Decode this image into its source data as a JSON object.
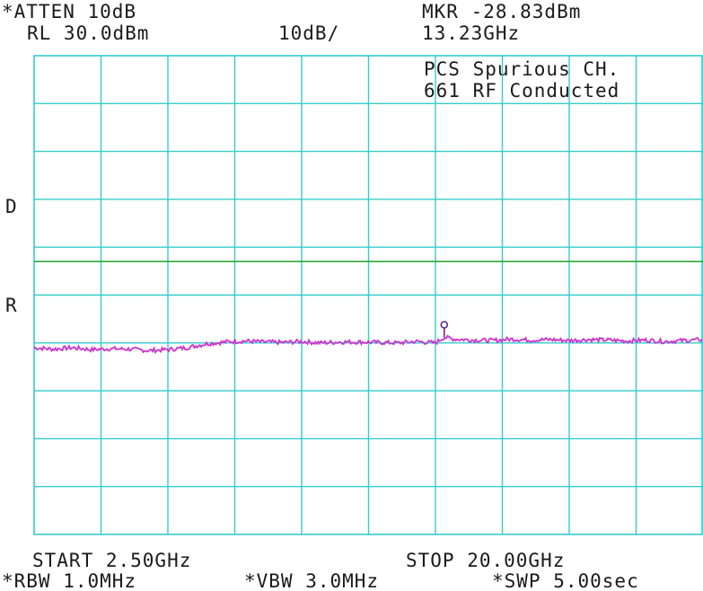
{
  "header": {
    "atten": "*ATTEN 10dB",
    "ref_level": "RL 30.0dBm",
    "scale": "10dB/",
    "marker_amp": "MKR -28.83dBm",
    "marker_freq": "13.23GHz",
    "note_line1": "PCS Spurious CH.",
    "note_line2": "661 RF Conducted"
  },
  "side": {
    "d_label": "D",
    "r_label": "R"
  },
  "footer": {
    "start": "START 2.50GHz",
    "stop": "STOP 20.00GHz",
    "rbw": "*RBW 1.0MHz",
    "vbw": "*VBW 3.0MHz",
    "swp": "*SWP 5.00sec"
  },
  "colors": {
    "grid": "#33cccc",
    "trace": "#cc33cc",
    "display_line": "#2fa83a",
    "marker": "#5a2a9a"
  },
  "chart_data": {
    "type": "line",
    "x_unit": "GHz",
    "y_unit": "dBm",
    "xlim": [
      2.5,
      20.0
    ],
    "ylim": [
      -70,
      30
    ],
    "grid": true,
    "grid_divisions": {
      "x": 10,
      "y": 10
    },
    "display_line_dbm": -13,
    "marker": {
      "x": 13.23,
      "y": -28.83
    },
    "series": [
      {
        "x": [
          2.5,
          3.0,
          3.5,
          4.0,
          4.5,
          5.0,
          5.5,
          6.0,
          6.5,
          7.0,
          7.5,
          8.0,
          8.5,
          9.0,
          9.5,
          10.0,
          10.5,
          11.0,
          11.5,
          12.0,
          12.5,
          13.0,
          13.23,
          13.5,
          14.0,
          14.5,
          15.0,
          15.5,
          16.0,
          16.5,
          17.0,
          17.5,
          18.0,
          18.5,
          19.0,
          19.5,
          20.0
        ],
        "y": [
          -31.0,
          -31.3,
          -31.0,
          -31.4,
          -31.2,
          -31.3,
          -31.6,
          -31.4,
          -31.0,
          -30.2,
          -29.8,
          -29.6,
          -29.8,
          -29.9,
          -29.7,
          -30.0,
          -29.8,
          -29.8,
          -29.9,
          -30.0,
          -29.7,
          -30.0,
          -28.83,
          -29.2,
          -29.4,
          -29.5,
          -29.2,
          -29.4,
          -29.3,
          -29.5,
          -29.3,
          -29.4,
          -29.6,
          -29.4,
          -29.7,
          -29.5,
          -29.3
        ]
      }
    ]
  }
}
